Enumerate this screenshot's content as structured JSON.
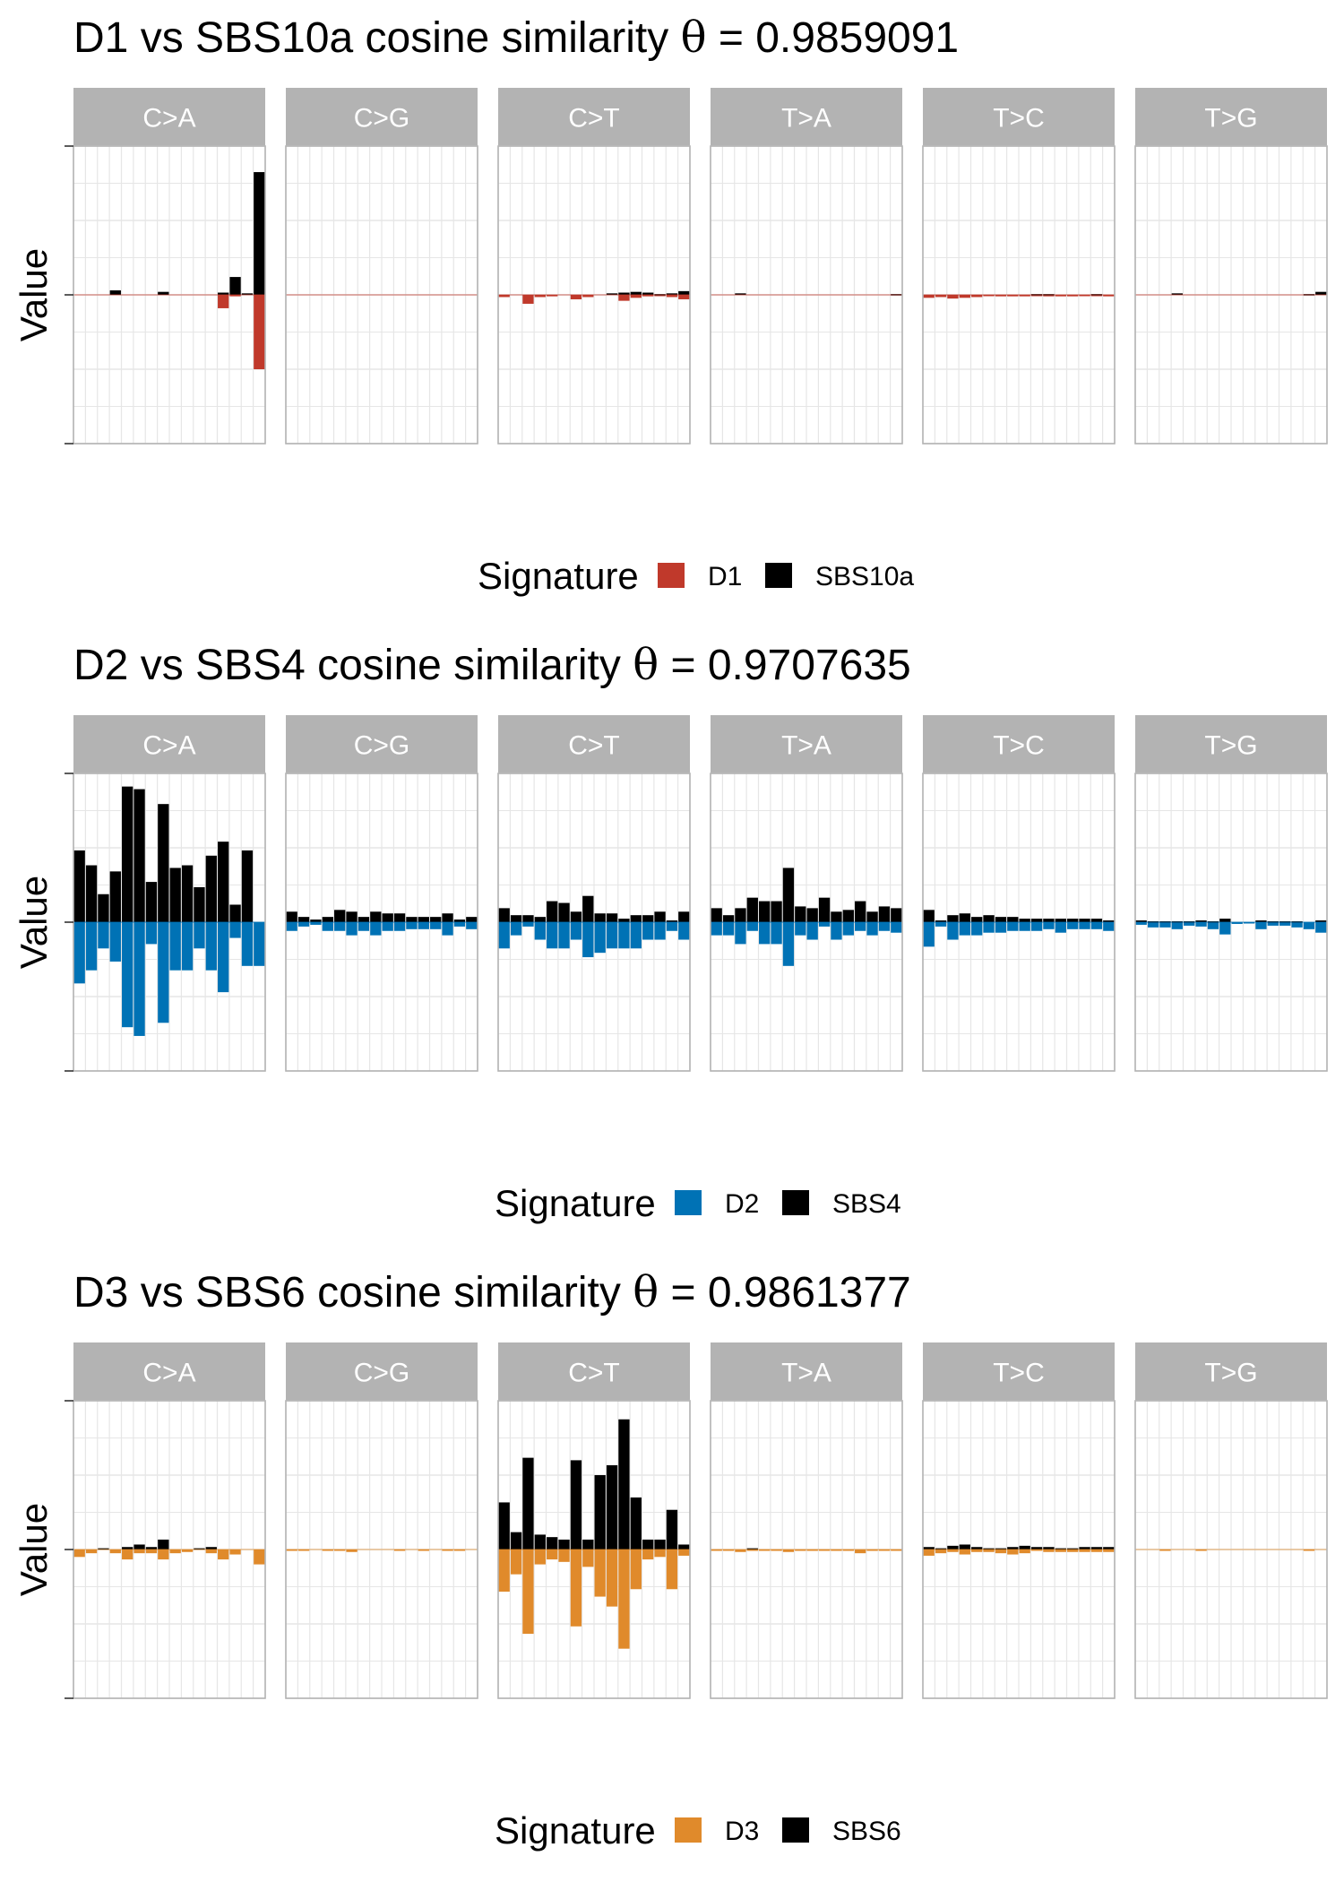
{
  "chart_data": [
    {
      "type": "bar",
      "title_main": "D1 vs SBS10a cosine similarity",
      "title_symbol": "θ",
      "title_value": "= 0.9859091",
      "ylabel": "Value",
      "ylim": [
        -2.0,
        2.0
      ],
      "facets": [
        "C>A",
        "C>G",
        "C>T",
        "T>A",
        "T>C",
        "T>G"
      ],
      "legend_title": "Signature",
      "series": [
        {
          "name": "D1",
          "color": "#C0392B",
          "values": [
            [
              0,
              0,
              0,
              0,
              0,
              0,
              0,
              0,
              0,
              0,
              0,
              0,
              -0.18,
              -0.02,
              0,
              -1.0
            ],
            [
              0,
              0,
              0,
              0,
              0,
              0,
              0,
              0,
              0,
              0,
              0,
              0,
              0,
              0,
              0,
              0
            ],
            [
              -0.03,
              0,
              -0.12,
              -0.03,
              -0.02,
              0,
              -0.06,
              -0.03,
              0,
              0,
              -0.08,
              -0.04,
              -0.02,
              -0.01,
              -0.03,
              -0.06
            ],
            [
              0,
              0,
              0,
              0,
              0,
              0,
              0,
              0,
              0,
              0,
              0,
              0,
              0,
              0,
              0,
              0
            ],
            [
              -0.04,
              -0.03,
              -0.05,
              -0.04,
              -0.03,
              -0.01,
              -0.02,
              -0.02,
              -0.02,
              -0.01,
              -0.02,
              -0.02,
              -0.02,
              -0.01,
              -0.01,
              -0.02
            ],
            [
              0,
              0,
              0,
              0,
              0,
              0,
              0,
              0,
              0,
              0,
              0,
              0,
              0,
              0,
              0,
              0
            ]
          ]
        },
        {
          "name": "SBS10a",
          "color": "#000000",
          "values": [
            [
              0,
              0,
              0,
              0.06,
              0,
              0,
              0,
              0.04,
              0,
              0,
              0,
              0,
              0.03,
              0.24,
              0.02,
              1.65
            ],
            [
              0,
              0,
              0,
              0,
              0,
              0,
              0,
              0,
              0,
              0,
              0,
              0,
              0,
              0,
              0,
              0
            ],
            [
              0,
              0,
              0,
              0,
              0,
              0,
              0,
              0,
              0,
              0.02,
              0.03,
              0.04,
              0.03,
              0.01,
              0.02,
              0.05
            ],
            [
              0,
              0,
              0.02,
              0,
              0,
              0,
              0,
              0,
              0,
              0,
              0,
              0,
              0,
              0,
              0,
              0.01
            ],
            [
              0,
              0,
              0,
              0,
              0,
              0,
              0,
              0,
              0,
              0.01,
              0.01,
              0,
              0,
              0,
              0.01,
              0
            ],
            [
              0,
              0,
              0,
              0.02,
              0,
              0,
              0,
              0,
              0,
              0,
              0,
              0,
              0,
              0,
              0.01,
              0.04
            ]
          ]
        }
      ]
    },
    {
      "type": "bar",
      "title_main": "D2 vs SBS4 cosine similarity",
      "title_symbol": "θ",
      "title_value": "= 0.9707635",
      "ylabel": "Value",
      "ylim": [
        -1.7,
        1.7
      ],
      "facets": [
        "C>A",
        "C>G",
        "C>T",
        "T>A",
        "T>C",
        "T>G"
      ],
      "legend_title": "Signature",
      "series": [
        {
          "name": "D2",
          "color": "#0072B5",
          "values": [
            [
              -0.7,
              -0.55,
              -0.3,
              -0.45,
              -1.2,
              -1.3,
              -0.25,
              -1.15,
              -0.55,
              -0.55,
              -0.3,
              -0.55,
              -0.8,
              -0.18,
              -0.5,
              -0.5
            ],
            [
              -0.1,
              -0.05,
              -0.03,
              -0.1,
              -0.1,
              -0.15,
              -0.1,
              -0.15,
              -0.1,
              -0.1,
              -0.08,
              -0.08,
              -0.08,
              -0.15,
              -0.05,
              -0.08
            ],
            [
              -0.3,
              -0.15,
              -0.05,
              -0.2,
              -0.3,
              -0.3,
              -0.2,
              -0.4,
              -0.35,
              -0.3,
              -0.3,
              -0.3,
              -0.2,
              -0.2,
              -0.1,
              -0.2
            ],
            [
              -0.15,
              -0.15,
              -0.25,
              -0.1,
              -0.25,
              -0.25,
              -0.5,
              -0.15,
              -0.2,
              -0.05,
              -0.2,
              -0.15,
              -0.1,
              -0.15,
              -0.1,
              -0.12
            ],
            [
              -0.28,
              -0.05,
              -0.2,
              -0.15,
              -0.15,
              -0.12,
              -0.12,
              -0.1,
              -0.1,
              -0.1,
              -0.08,
              -0.12,
              -0.08,
              -0.08,
              -0.08,
              -0.1
            ],
            [
              -0.03,
              -0.06,
              -0.06,
              -0.08,
              -0.04,
              -0.05,
              -0.08,
              -0.14,
              -0.02,
              -0.01,
              -0.08,
              -0.04,
              -0.04,
              -0.06,
              -0.08,
              -0.12
            ]
          ]
        },
        {
          "name": "SBS4",
          "color": "#000000",
          "values": [
            [
              0.82,
              0.65,
              0.32,
              0.58,
              1.55,
              1.52,
              0.46,
              1.35,
              0.62,
              0.65,
              0.4,
              0.76,
              0.92,
              0.2,
              0.82,
              0.0
            ],
            [
              0.12,
              0.06,
              0.03,
              0.06,
              0.14,
              0.12,
              0.06,
              0.12,
              0.1,
              0.1,
              0.06,
              0.06,
              0.06,
              0.1,
              0.03,
              0.06
            ],
            [
              0.16,
              0.08,
              0.08,
              0.06,
              0.24,
              0.22,
              0.12,
              0.3,
              0.1,
              0.1,
              0.04,
              0.08,
              0.08,
              0.12,
              0.02,
              0.12
            ],
            [
              0.16,
              0.08,
              0.16,
              0.28,
              0.24,
              0.24,
              0.62,
              0.18,
              0.16,
              0.28,
              0.12,
              0.14,
              0.24,
              0.12,
              0.18,
              0.16
            ],
            [
              0.14,
              0.02,
              0.08,
              0.1,
              0.06,
              0.08,
              0.06,
              0.06,
              0.04,
              0.04,
              0.04,
              0.04,
              0.04,
              0.04,
              0.04,
              0.02
            ],
            [
              0.02,
              0.01,
              0.01,
              0.01,
              0.01,
              0.02,
              0.01,
              0.04,
              0.0,
              0.0,
              0.02,
              0.01,
              0.01,
              0.01,
              0.0,
              0.02
            ]
          ]
        }
      ]
    },
    {
      "type": "bar",
      "title_main": "D3 vs SBS6 cosine similarity",
      "title_symbol": "θ",
      "title_value": "= 0.9861377",
      "ylabel": "Value",
      "ylim": [
        -1.2,
        1.2
      ],
      "facets": [
        "C>A",
        "C>G",
        "C>T",
        "T>A",
        "T>C",
        "T>G"
      ],
      "legend_title": "Signature",
      "series": [
        {
          "name": "D3",
          "color": "#E08A2B",
          "values": [
            [
              -0.06,
              -0.03,
              0,
              -0.03,
              -0.08,
              -0.03,
              -0.03,
              -0.08,
              -0.03,
              -0.02,
              0,
              -0.03,
              -0.08,
              -0.04,
              0,
              -0.12
            ],
            [
              -0.01,
              -0.01,
              0,
              -0.01,
              -0.01,
              -0.02,
              0,
              0,
              0,
              -0.01,
              0,
              -0.01,
              0,
              -0.01,
              -0.01,
              0
            ],
            [
              -0.34,
              -0.2,
              -0.68,
              -0.12,
              -0.08,
              -0.1,
              -0.62,
              -0.14,
              -0.38,
              -0.46,
              -0.8,
              -0.32,
              -0.08,
              -0.06,
              -0.32,
              -0.05
            ],
            [
              -0.01,
              -0.01,
              -0.02,
              -0.01,
              -0.01,
              -0.01,
              -0.02,
              -0.01,
              -0.01,
              -0.01,
              -0.01,
              -0.01,
              -0.03,
              -0.01,
              -0.01,
              -0.01
            ],
            [
              -0.05,
              -0.03,
              -0.02,
              -0.04,
              -0.02,
              -0.02,
              -0.03,
              -0.04,
              -0.03,
              -0.01,
              -0.02,
              -0.02,
              -0.02,
              -0.02,
              -0.02,
              -0.02
            ],
            [
              0,
              0,
              -0.01,
              0,
              0,
              -0.01,
              0,
              0,
              0,
              0,
              0,
              0,
              0,
              0,
              -0.01,
              0
            ]
          ]
        },
        {
          "name": "SBS6",
          "color": "#000000",
          "values": [
            [
              0,
              0,
              0.01,
              0,
              0.02,
              0.04,
              0.02,
              0.08,
              0,
              0,
              0.01,
              0.02,
              0,
              0,
              0,
              0
            ],
            [
              0,
              0,
              0,
              0,
              0,
              0,
              0,
              0,
              0,
              0,
              0,
              0,
              0,
              0,
              0,
              0
            ],
            [
              0.38,
              0.14,
              0.74,
              0.12,
              0.1,
              0.08,
              0.72,
              0.08,
              0.6,
              0.68,
              1.05,
              0.42,
              0.08,
              0.08,
              0.32,
              0.04
            ],
            [
              0,
              0,
              0,
              0.01,
              0,
              0,
              0,
              0,
              0,
              0,
              0,
              0,
              0,
              0,
              0,
              0
            ],
            [
              0.02,
              0.01,
              0.03,
              0.04,
              0.02,
              0.01,
              0.01,
              0.02,
              0.03,
              0.02,
              0.02,
              0.01,
              0.01,
              0.02,
              0.02,
              0.02
            ],
            [
              0,
              0,
              0,
              0,
              0,
              0,
              0,
              0,
              0,
              0,
              0,
              0,
              0,
              0,
              0,
              0
            ]
          ]
        }
      ]
    }
  ]
}
